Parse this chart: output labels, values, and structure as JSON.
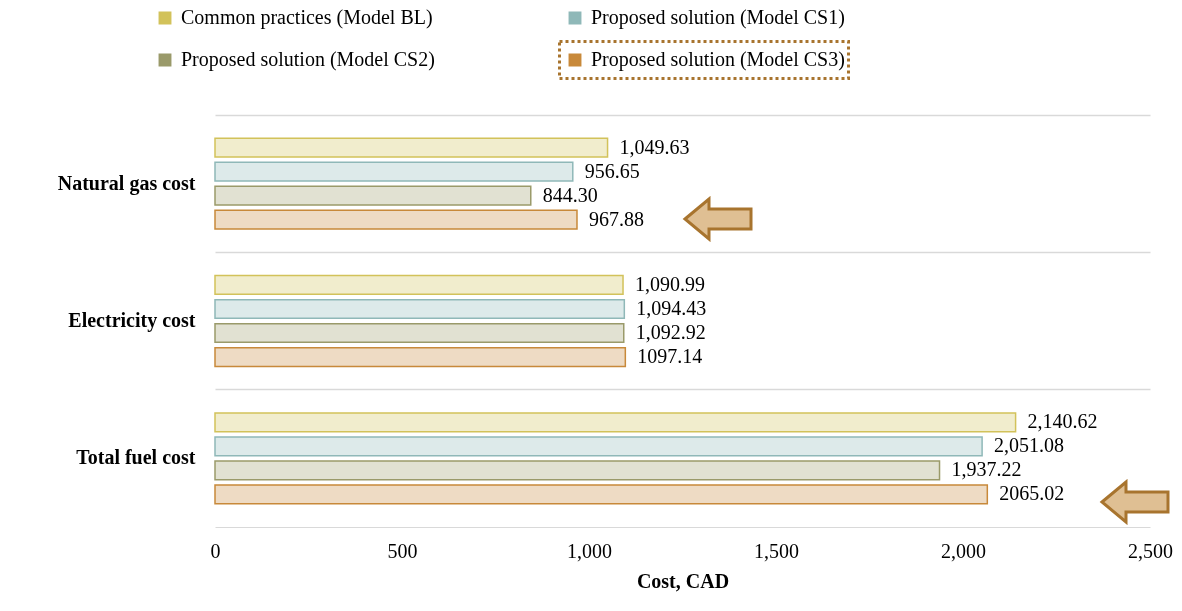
{
  "chart_data": {
    "type": "bar",
    "orientation": "horizontal",
    "xlabel": "Cost, CAD",
    "categories": [
      "Natural gas cost",
      "Electricity cost",
      "Total fuel cost"
    ],
    "series": [
      {
        "name": "Common practices (Model BL)",
        "color": "#d2c25a",
        "values": [
          1049.63,
          1090.99,
          2140.62
        ],
        "value_labels": [
          "1,049.63",
          "1,090.99",
          "2,140.62"
        ]
      },
      {
        "name": "Proposed solution (Model CS1)",
        "color": "#8fb8b8",
        "values": [
          956.65,
          1094.43,
          2051.08
        ],
        "value_labels": [
          "956.65",
          "1,094.43",
          "2,051.08"
        ]
      },
      {
        "name": "Proposed solution (Model CS2)",
        "color": "#9a9a6a",
        "values": [
          844.3,
          1092.92,
          1937.22
        ],
        "value_labels": [
          "844.30",
          "1,092.92",
          "1,937.22"
        ]
      },
      {
        "name": "Proposed solution (Model CS3)",
        "color": "#c8893a",
        "values": [
          967.88,
          1097.14,
          2065.02
        ],
        "value_labels": [
          "967.88",
          "1097.14",
          "2065.02"
        ]
      }
    ],
    "xlim": [
      0,
      2500
    ],
    "xticks": [
      0,
      500,
      {
        "value": 1000,
        "label": "1,000"
      },
      {
        "value": 1500,
        "label": "1,500"
      },
      {
        "value": 2000,
        "label": "2,000"
      },
      {
        "value": 2500,
        "label": "2,500"
      }
    ],
    "grid": "y",
    "legend": "top"
  }
}
